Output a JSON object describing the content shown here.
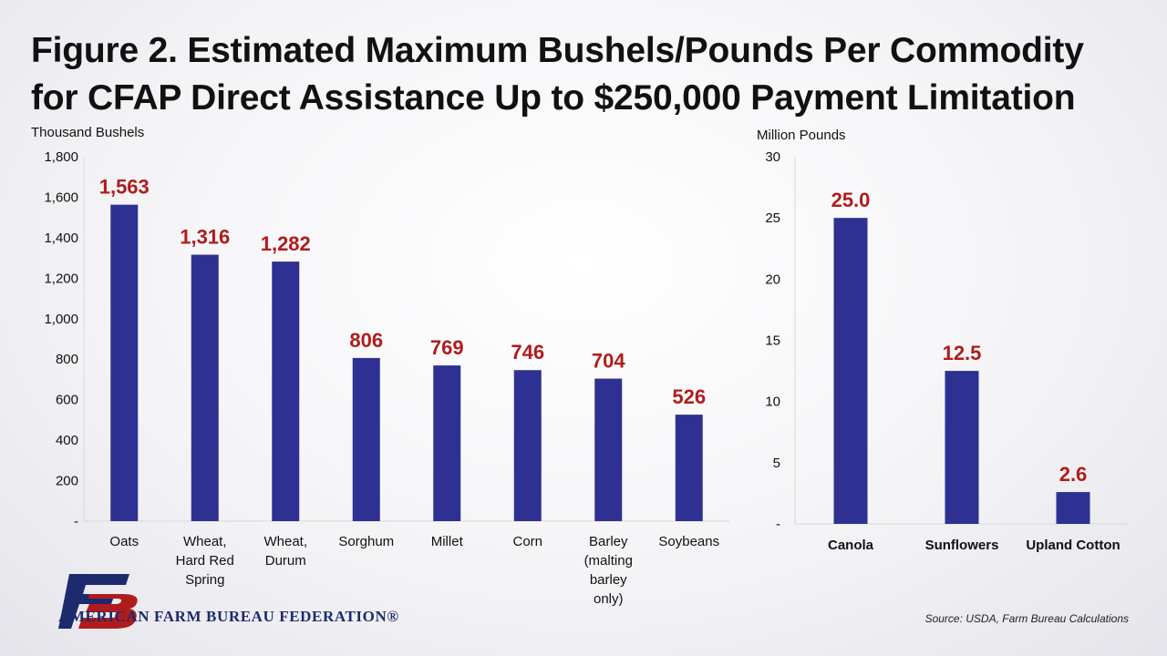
{
  "title_line1": "Figure 2. Estimated Maximum Bushels/Pounds Per Commodity",
  "title_line2": "for CFAP Direct Assistance Up to $250,000 Payment Limitation",
  "source": "Source: USDA, Farm Bureau Calculations",
  "logo_text": "AMERICAN FARM BUREAU FEDERATION®",
  "colors": {
    "bar": "#2e3192",
    "label": "#b01c1c",
    "axis": "#d8d8d8",
    "text": "#111111"
  },
  "chart_data": [
    {
      "type": "bar",
      "ylabel": "Thousand Bushels",
      "ylim": [
        0,
        1800
      ],
      "yticks": [
        "-",
        "200",
        "400",
        "600",
        "800",
        "1,000",
        "1,200",
        "1,400",
        "1,600",
        "1,800"
      ],
      "categories": [
        [
          "Oats"
        ],
        [
          "Wheat,",
          "Hard Red",
          "Spring"
        ],
        [
          "Wheat,",
          "Durum"
        ],
        [
          "Sorghum"
        ],
        [
          "Millet"
        ],
        [
          "Corn"
        ],
        [
          "Barley",
          "(malting",
          "barley",
          "only)"
        ],
        [
          "Soybeans"
        ]
      ],
      "values": [
        1563,
        1316,
        1282,
        806,
        769,
        746,
        704,
        526
      ],
      "data_labels": [
        "1,563",
        "1,316",
        "1,282",
        "806",
        "769",
        "746",
        "704",
        "526"
      ],
      "grid": false
    },
    {
      "type": "bar",
      "ylabel": "Million Pounds",
      "ylim": [
        0,
        30
      ],
      "yticks": [
        "-",
        "5",
        "10",
        "15",
        "20",
        "25",
        "30"
      ],
      "categories": [
        [
          "Canola"
        ],
        [
          "Sunflowers"
        ],
        [
          "Upland Cotton"
        ]
      ],
      "values": [
        25.0,
        12.5,
        2.6
      ],
      "data_labels": [
        "25.0",
        "12.5",
        "2.6"
      ],
      "grid": false
    }
  ]
}
